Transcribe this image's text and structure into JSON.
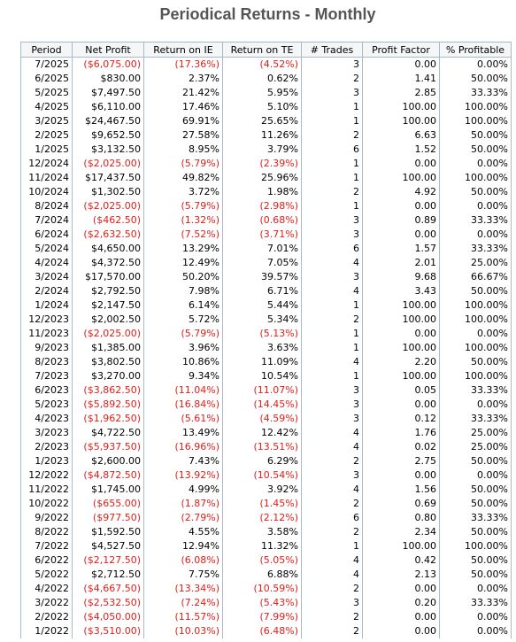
{
  "header": {
    "title": "Periodical Returns - Monthly"
  },
  "table": {
    "columns": [
      "Period",
      "Net Profit",
      "Return on IE",
      "Return on TE",
      "# Trades",
      "Profit Factor",
      "% Profitable"
    ],
    "rows": [
      [
        "7/2025",
        "($6,075.00)",
        "(17.36%)",
        "(4.52%)",
        "3",
        "0.00",
        "0.00%"
      ],
      [
        "6/2025",
        "$830.00",
        "2.37%",
        "0.62%",
        "2",
        "1.41",
        "50.00%"
      ],
      [
        "5/2025",
        "$7,497.50",
        "21.42%",
        "5.95%",
        "3",
        "2.85",
        "33.33%"
      ],
      [
        "4/2025",
        "$6,110.00",
        "17.46%",
        "5.10%",
        "1",
        "100.00",
        "100.00%"
      ],
      [
        "3/2025",
        "$24,467.50",
        "69.91%",
        "25.65%",
        "1",
        "100.00",
        "100.00%"
      ],
      [
        "2/2025",
        "$9,652.50",
        "27.58%",
        "11.26%",
        "2",
        "6.63",
        "50.00%"
      ],
      [
        "1/2025",
        "$3,132.50",
        "8.95%",
        "3.79%",
        "6",
        "1.52",
        "50.00%"
      ],
      [
        "12/2024",
        "($2,025.00)",
        "(5.79%)",
        "(2.39%)",
        "1",
        "0.00",
        "0.00%"
      ],
      [
        "11/2024",
        "$17,437.50",
        "49.82%",
        "25.96%",
        "1",
        "100.00",
        "100.00%"
      ],
      [
        "10/2024",
        "$1,302.50",
        "3.72%",
        "1.98%",
        "2",
        "4.92",
        "50.00%"
      ],
      [
        "8/2024",
        "($2,025.00)",
        "(5.79%)",
        "(2.98%)",
        "1",
        "0.00",
        "0.00%"
      ],
      [
        "7/2024",
        "($462.50)",
        "(1.32%)",
        "(0.68%)",
        "3",
        "0.89",
        "33.33%"
      ],
      [
        "6/2024",
        "($2,632.50)",
        "(7.52%)",
        "(3.71%)",
        "3",
        "0.00",
        "0.00%"
      ],
      [
        "5/2024",
        "$4,650.00",
        "13.29%",
        "7.01%",
        "6",
        "1.57",
        "33.33%"
      ],
      [
        "4/2024",
        "$4,372.50",
        "12.49%",
        "7.05%",
        "4",
        "2.01",
        "25.00%"
      ],
      [
        "3/2024",
        "$17,570.00",
        "50.20%",
        "39.57%",
        "3",
        "9.68",
        "66.67%"
      ],
      [
        "2/2024",
        "$2,792.50",
        "7.98%",
        "6.71%",
        "4",
        "3.43",
        "50.00%"
      ],
      [
        "1/2024",
        "$2,147.50",
        "6.14%",
        "5.44%",
        "1",
        "100.00",
        "100.00%"
      ],
      [
        "12/2023",
        "$2,002.50",
        "5.72%",
        "5.34%",
        "2",
        "100.00",
        "100.00%"
      ],
      [
        "11/2023",
        "($2,025.00)",
        "(5.79%)",
        "(5.13%)",
        "1",
        "0.00",
        "0.00%"
      ],
      [
        "9/2023",
        "$1,385.00",
        "3.96%",
        "3.63%",
        "1",
        "100.00",
        "100.00%"
      ],
      [
        "8/2023",
        "$3,802.50",
        "10.86%",
        "11.09%",
        "4",
        "2.20",
        "50.00%"
      ],
      [
        "7/2023",
        "$3,270.00",
        "9.34%",
        "10.54%",
        "1",
        "100.00",
        "100.00%"
      ],
      [
        "6/2023",
        "($3,862.50)",
        "(11.04%)",
        "(11.07%)",
        "3",
        "0.05",
        "33.33%"
      ],
      [
        "5/2023",
        "($5,892.50)",
        "(16.84%)",
        "(14.45%)",
        "3",
        "0.00",
        "0.00%"
      ],
      [
        "4/2023",
        "($1,962.50)",
        "(5.61%)",
        "(4.59%)",
        "3",
        "0.12",
        "33.33%"
      ],
      [
        "3/2023",
        "$4,722.50",
        "13.49%",
        "12.42%",
        "4",
        "1.76",
        "25.00%"
      ],
      [
        "2/2023",
        "($5,937.50)",
        "(16.96%)",
        "(13.51%)",
        "4",
        "0.02",
        "25.00%"
      ],
      [
        "1/2023",
        "$2,600.00",
        "7.43%",
        "6.29%",
        "2",
        "2.75",
        "50.00%"
      ],
      [
        "12/2022",
        "($4,872.50)",
        "(13.92%)",
        "(10.54%)",
        "3",
        "0.00",
        "0.00%"
      ],
      [
        "11/2022",
        "$1,745.00",
        "4.99%",
        "3.92%",
        "4",
        "1.56",
        "50.00%"
      ],
      [
        "10/2022",
        "($655.00)",
        "(1.87%)",
        "(1.45%)",
        "2",
        "0.69",
        "50.00%"
      ],
      [
        "9/2022",
        "($977.50)",
        "(2.79%)",
        "(2.12%)",
        "6",
        "0.80",
        "33.33%"
      ],
      [
        "8/2022",
        "$1,592.50",
        "4.55%",
        "3.58%",
        "2",
        "2.34",
        "50.00%"
      ],
      [
        "7/2022",
        "$4,527.50",
        "12.94%",
        "11.32%",
        "1",
        "100.00",
        "100.00%"
      ],
      [
        "6/2022",
        "($2,127.50)",
        "(6.08%)",
        "(5.05%)",
        "4",
        "0.42",
        "50.00%"
      ],
      [
        "5/2022",
        "$2,712.50",
        "7.75%",
        "6.88%",
        "4",
        "2.13",
        "50.00%"
      ],
      [
        "4/2022",
        "($4,667.50)",
        "(13.34%)",
        "(10.59%)",
        "2",
        "0.00",
        "0.00%"
      ],
      [
        "3/2022",
        "($2,532.50)",
        "(7.24%)",
        "(5.43%)",
        "3",
        "0.20",
        "33.33%"
      ],
      [
        "2/2022",
        "($4,050.00)",
        "(11.57%)",
        "(7.99%)",
        "2",
        "0.00",
        "0.00%"
      ],
      [
        "1/2022",
        "($3,510.00)",
        "(10.03%)",
        "(6.48%)",
        "2",
        "0.00",
        "0.00%"
      ]
    ]
  }
}
